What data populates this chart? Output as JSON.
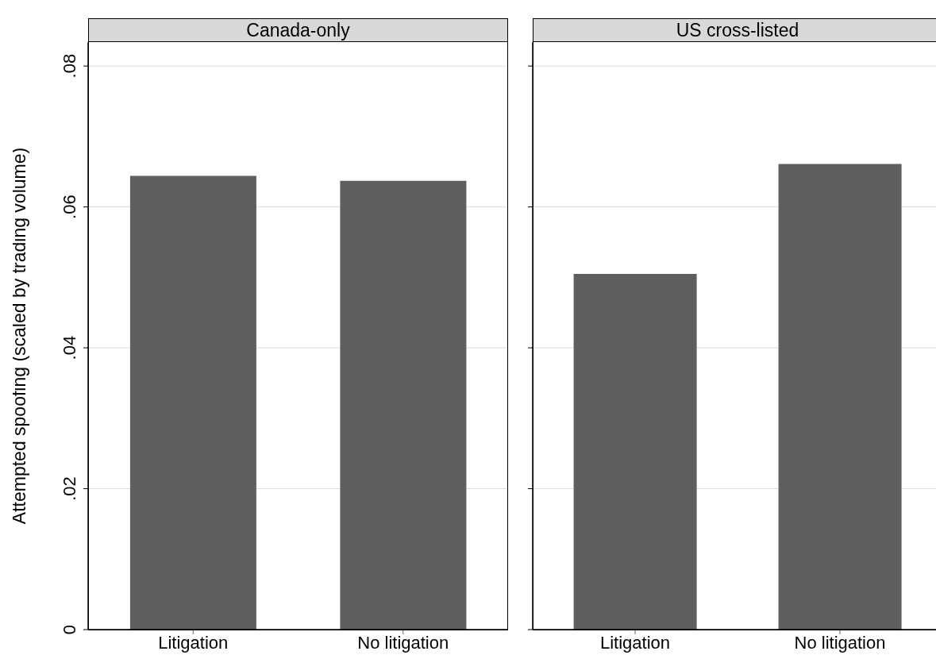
{
  "chart_data": [
    {
      "type": "bar",
      "title": "Canada-only",
      "ylabel": "Attempted spoofing (scaled by trading volume)",
      "categories": [
        "Litigation",
        "No litigation"
      ],
      "values": [
        0.0644,
        0.0637
      ],
      "color": "#5f5f5f",
      "ylim": [
        0,
        0.0834
      ],
      "yticks": [
        {
          "value": 0,
          "label": "0"
        },
        {
          "value": 0.02,
          "label": ".02"
        },
        {
          "value": 0.04,
          "label": ".04"
        },
        {
          "value": 0.06,
          "label": ".06"
        },
        {
          "value": 0.08,
          "label": ".08"
        }
      ],
      "grid": "y"
    },
    {
      "type": "bar",
      "title": "US cross-listed",
      "categories": [
        "Litigation",
        "No litigation"
      ],
      "values": [
        0.0505,
        0.0661
      ],
      "color": "#5f5f5f",
      "ylim": [
        0,
        0.0834
      ],
      "yticks": [
        0,
        0.02,
        0.04,
        0.06,
        0.08
      ],
      "grid": "y",
      "tick_labels": "x"
    }
  ]
}
